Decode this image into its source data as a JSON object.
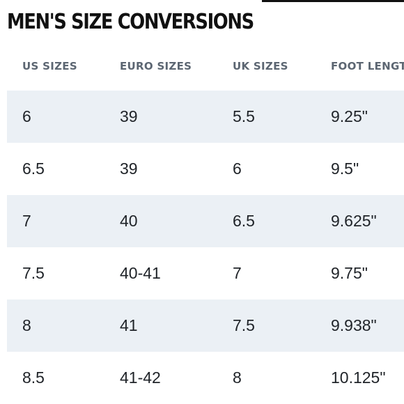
{
  "title": "MEN'S SIZE CONVERSIONS",
  "table": {
    "headers": [
      "US SIZES",
      "EURO SIZES",
      "UK SIZES",
      "FOOT LENGTH"
    ],
    "rows": [
      [
        "6",
        "39",
        "5.5",
        "9.25\""
      ],
      [
        "6.5",
        "39",
        "6",
        "9.5\""
      ],
      [
        "7",
        "40",
        "6.5",
        "9.625\""
      ],
      [
        "7.5",
        "40-41",
        "7",
        "9.75\""
      ],
      [
        "8",
        "41",
        "7.5",
        "9.938\""
      ],
      [
        "8.5",
        "41-42",
        "8",
        "10.125\""
      ]
    ]
  },
  "colors": {
    "stripe": "#ebf0f5",
    "header_text": "#5c6672",
    "title_text": "#111111"
  }
}
